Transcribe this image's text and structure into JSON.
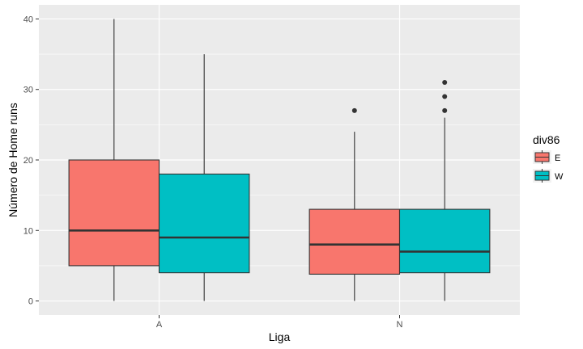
{
  "chart_data": {
    "type": "boxplot",
    "title": "",
    "xlabel": "Liga",
    "ylabel": "Número de Home runs",
    "categories": [
      "A",
      "N"
    ],
    "ylim": [
      -2,
      42
    ],
    "yticks": [
      0,
      10,
      20,
      30,
      40
    ],
    "grid": true,
    "legend": {
      "title": "div86",
      "placement": "right",
      "entries": [
        {
          "label": "E",
          "color": "#F8766D"
        },
        {
          "label": "W",
          "color": "#00BFC4"
        }
      ]
    },
    "series": [
      {
        "name": "E",
        "color": "#F8766D",
        "boxes": [
          {
            "category": "A",
            "min": 0,
            "q1": 5,
            "median": 10,
            "q3": 20,
            "max": 40,
            "outliers": []
          },
          {
            "category": "N",
            "min": 0,
            "q1": 3.8,
            "median": 8,
            "q3": 13,
            "max": 24,
            "outliers": [
              27
            ]
          }
        ]
      },
      {
        "name": "W",
        "color": "#00BFC4",
        "boxes": [
          {
            "category": "A",
            "min": 0,
            "q1": 4,
            "median": 9,
            "q3": 18,
            "max": 35,
            "outliers": []
          },
          {
            "category": "N",
            "min": 0,
            "q1": 4,
            "median": 7,
            "q3": 13,
            "max": 26,
            "outliers": [
              27,
              29,
              31
            ]
          }
        ]
      }
    ]
  }
}
